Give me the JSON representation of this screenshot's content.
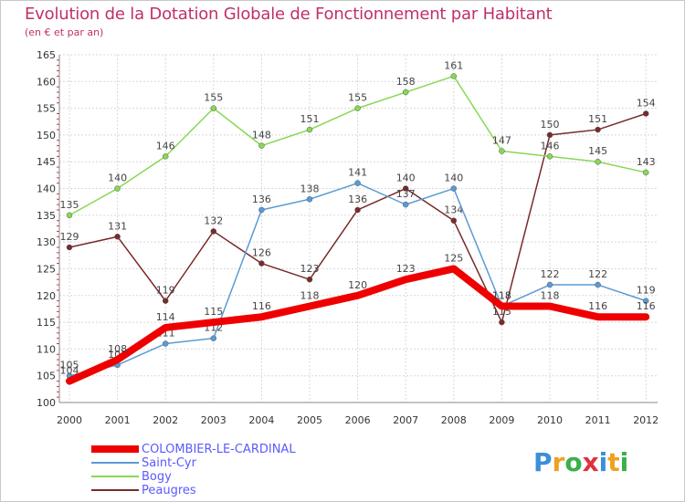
{
  "title": "Evolution de la Dotation Globale de Fonctionnement par Habitant",
  "subtitle": "(en € et par an)",
  "logo": {
    "letters": [
      "P",
      "r",
      "o",
      "x",
      "i",
      "t",
      "i"
    ],
    "colors": [
      "#3a8fd8",
      "#f0a020",
      "#3ab04a",
      "#e03040",
      "#3a8fd8",
      "#f0a020",
      "#3ab04a"
    ]
  },
  "chart_data": {
    "type": "line",
    "title": "Evolution de la Dotation Globale de Fonctionnement par Habitant",
    "subtitle": "(en € et par an)",
    "x": [
      "2000",
      "2001",
      "2002",
      "2003",
      "2004",
      "2005",
      "2006",
      "2007",
      "2008",
      "2009",
      "2010",
      "2011",
      "2012"
    ],
    "ylim": [
      100,
      165
    ],
    "yticks": [
      "100",
      "105",
      "110",
      "115",
      "120",
      "125",
      "130",
      "135",
      "140",
      "145",
      "150",
      "155",
      "160",
      "165"
    ],
    "grid": true,
    "legend": "bottom-left",
    "series": [
      {
        "name": "COLOMBIER-LE-CARDINAL",
        "color": "#ee0000",
        "width": 8,
        "values": [
          104,
          108,
          114,
          115,
          116,
          118,
          120,
          123,
          125,
          118,
          118,
          116,
          116
        ],
        "labels": [
          "104",
          "108",
          "114",
          "115",
          "116",
          "118",
          "120",
          "123",
          "125",
          "118",
          "118",
          "116",
          "116"
        ]
      },
      {
        "name": "Saint-Cyr",
        "color": "#5a9ad6",
        "width": 1.5,
        "values": [
          105,
          107,
          111,
          112,
          136,
          138,
          141,
          137,
          140,
          118,
          122,
          122,
          119
        ],
        "labels": [
          "105",
          "107",
          "111",
          "112",
          "136",
          "138",
          "141",
          "137",
          "140",
          "118",
          "122",
          "122",
          "119"
        ]
      },
      {
        "name": "Bogy",
        "color": "#88d855",
        "width": 1.5,
        "values": [
          135,
          140,
          146,
          155,
          148,
          151,
          155,
          158,
          161,
          147,
          146,
          145,
          143
        ],
        "labels": [
          "135",
          "140",
          "146",
          "155",
          "148",
          "151",
          "155",
          "158",
          "161",
          "147",
          "146",
          "145",
          "143"
        ]
      },
      {
        "name": "Peaugres",
        "color": "#7a2a2a",
        "width": 1.5,
        "values": [
          129,
          131,
          119,
          132,
          126,
          123,
          136,
          140,
          134,
          115,
          150,
          151,
          154
        ],
        "labels": [
          "129",
          "131",
          "119",
          "132",
          "126",
          "123",
          "136",
          "140",
          "134",
          "115",
          "150",
          "151",
          "154"
        ]
      }
    ]
  }
}
